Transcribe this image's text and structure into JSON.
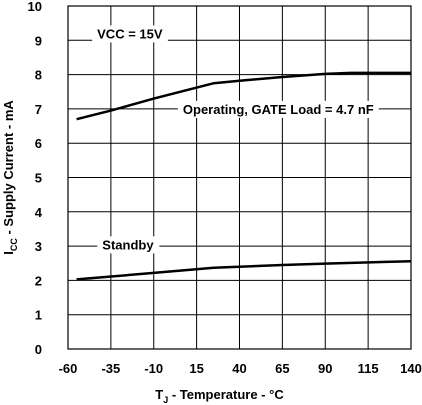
{
  "chart_data": {
    "type": "line",
    "xlabel": {
      "main": "T",
      "sub": "J",
      "rest": " - Temperature - °C"
    },
    "ylabel": {
      "main": "I",
      "sub": "CC",
      "rest": " - Supply Current - mA"
    },
    "xlim": [
      -60,
      140
    ],
    "ylim": [
      0,
      10
    ],
    "xticks": [
      -60,
      -35,
      -10,
      15,
      40,
      65,
      90,
      115,
      140
    ],
    "yticks": [
      0,
      1,
      2,
      3,
      4,
      5,
      6,
      7,
      8,
      9,
      10
    ],
    "grid": true,
    "series": [
      {
        "name": "Operating, GATE Load = 4.7 nF",
        "x": [
          -55,
          -35,
          -10,
          25,
          40,
          65,
          90,
          105,
          140
        ],
        "y": [
          6.7,
          6.95,
          7.3,
          7.75,
          7.82,
          7.93,
          8.02,
          8.05,
          8.05
        ]
      },
      {
        "name": "Standby",
        "x": [
          -55,
          -10,
          25,
          65,
          90,
          140
        ],
        "y": [
          2.03,
          2.22,
          2.37,
          2.45,
          2.49,
          2.56
        ]
      }
    ],
    "annotations": [
      {
        "text": "VCC = 15V",
        "x": -43,
        "y": 9.2
      },
      {
        "text": "Operating, GATE Load = 4.7 nF",
        "x": 7,
        "y": 7.0
      },
      {
        "text": "Standby",
        "x": -40,
        "y": 3.05
      }
    ]
  }
}
